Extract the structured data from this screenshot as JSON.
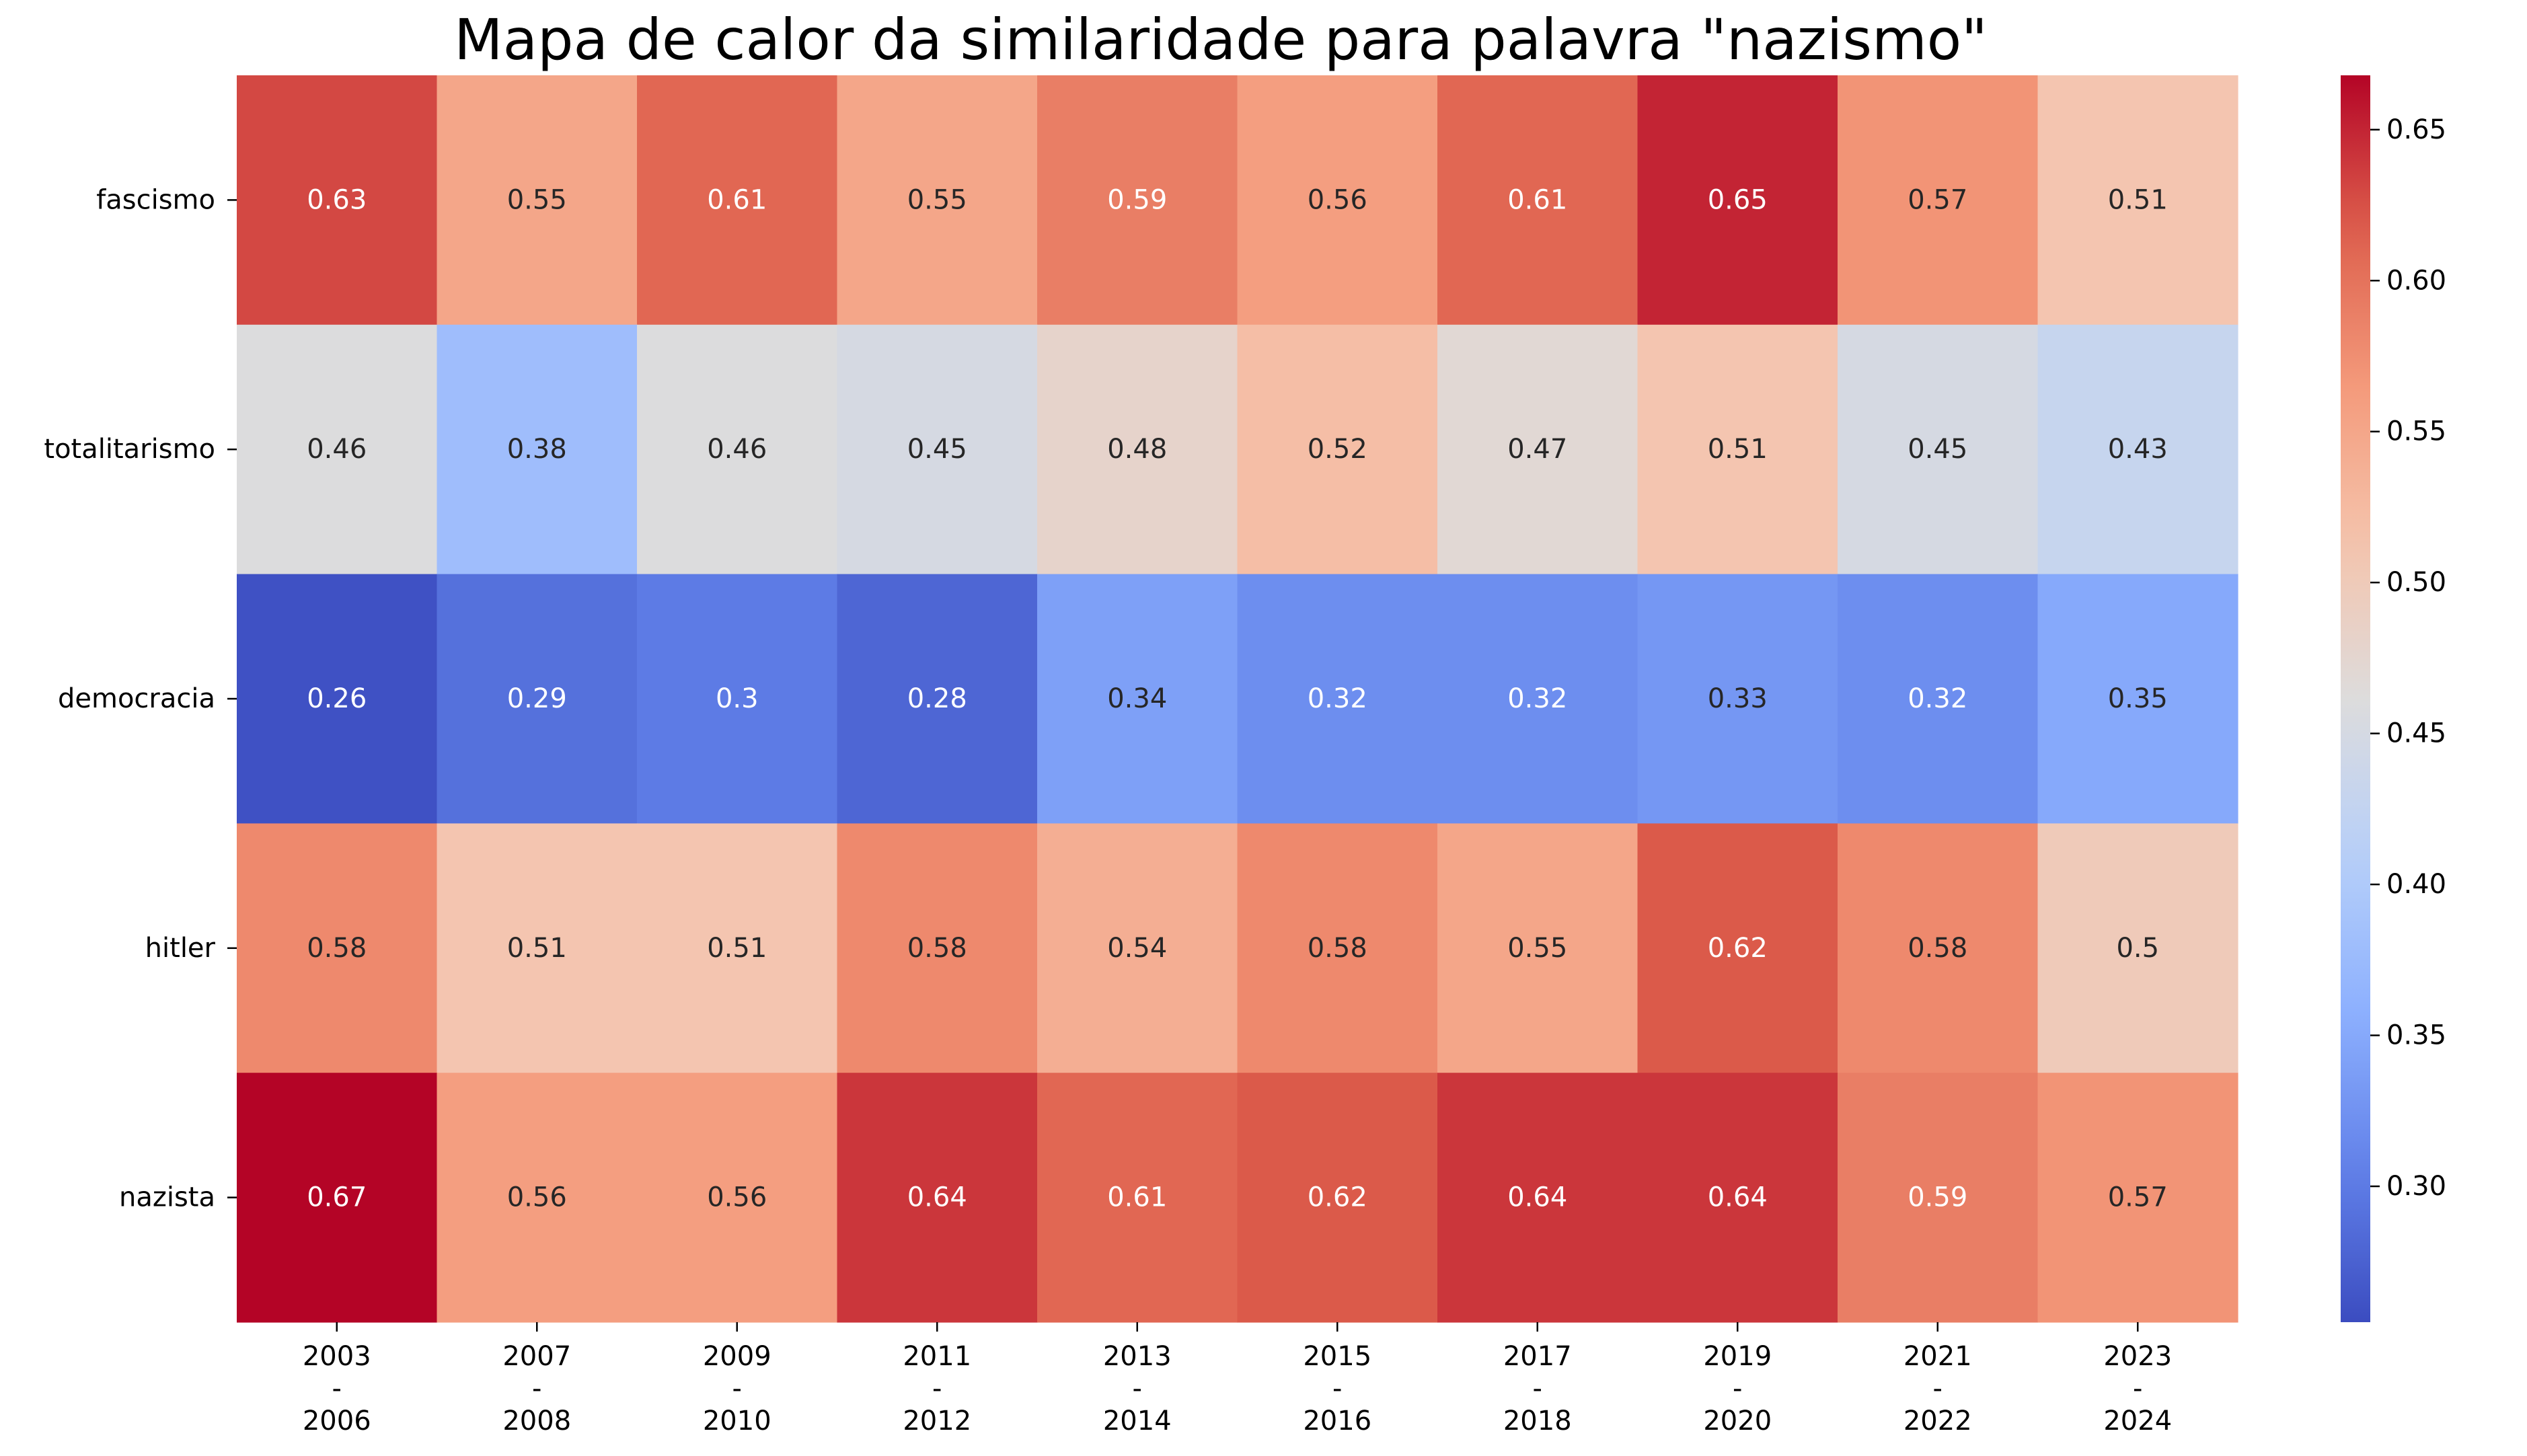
{
  "chart_data": {
    "type": "heatmap",
    "title": "Mapa de calor da similaridade para palavra \"nazismo\"",
    "xlabel": "",
    "ylabel": "",
    "colormap": "coolwarm",
    "x_categories": [
      [
        "2003",
        "-",
        "2006"
      ],
      [
        "2007",
        "-",
        "2008"
      ],
      [
        "2009",
        "-",
        "2010"
      ],
      [
        "2011",
        "-",
        "2012"
      ],
      [
        "2013",
        "-",
        "2014"
      ],
      [
        "2015",
        "-",
        "2016"
      ],
      [
        "2017",
        "-",
        "2018"
      ],
      [
        "2019",
        "-",
        "2020"
      ],
      [
        "2021",
        "-",
        "2022"
      ],
      [
        "2023",
        "-",
        "2024"
      ]
    ],
    "y_categories": [
      "fascismo",
      "totalitarismo",
      "democracia",
      "hitler",
      "nazista"
    ],
    "values": [
      [
        0.63,
        0.55,
        0.61,
        0.55,
        0.59,
        0.56,
        0.61,
        0.65,
        0.57,
        0.51
      ],
      [
        0.46,
        0.38,
        0.46,
        0.45,
        0.48,
        0.52,
        0.47,
        0.51,
        0.45,
        0.43
      ],
      [
        0.26,
        0.29,
        0.3,
        0.28,
        0.34,
        0.32,
        0.32,
        0.33,
        0.32,
        0.35
      ],
      [
        0.58,
        0.51,
        0.51,
        0.58,
        0.54,
        0.58,
        0.55,
        0.62,
        0.58,
        0.5
      ],
      [
        0.67,
        0.56,
        0.56,
        0.64,
        0.61,
        0.62,
        0.64,
        0.64,
        0.59,
        0.57
      ]
    ],
    "value_labels": [
      [
        "0.63",
        "0.55",
        "0.61",
        "0.55",
        "0.59",
        "0.56",
        "0.61",
        "0.65",
        "0.57",
        "0.51"
      ],
      [
        "0.46",
        "0.38",
        "0.46",
        "0.45",
        "0.48",
        "0.52",
        "0.47",
        "0.51",
        "0.45",
        "0.43"
      ],
      [
        "0.26",
        "0.29",
        "0.3",
        "0.28",
        "0.34",
        "0.32",
        "0.32",
        "0.33",
        "0.32",
        "0.35"
      ],
      [
        "0.58",
        "0.51",
        "0.51",
        "0.58",
        "0.54",
        "0.58",
        "0.55",
        "0.62",
        "0.58",
        "0.5"
      ],
      [
        "0.67",
        "0.56",
        "0.56",
        "0.64",
        "0.61",
        "0.62",
        "0.64",
        "0.64",
        "0.59",
        "0.57"
      ]
    ],
    "colorbar": {
      "range": [
        0.255,
        0.668
      ],
      "ticks": [
        0.3,
        0.35,
        0.4,
        0.45,
        0.5,
        0.55,
        0.6,
        0.65
      ],
      "tick_labels": [
        "0.30",
        "0.35",
        "0.40",
        "0.45",
        "0.50",
        "0.55",
        "0.60",
        "0.65"
      ],
      "placement": "right"
    },
    "grid": false
  }
}
